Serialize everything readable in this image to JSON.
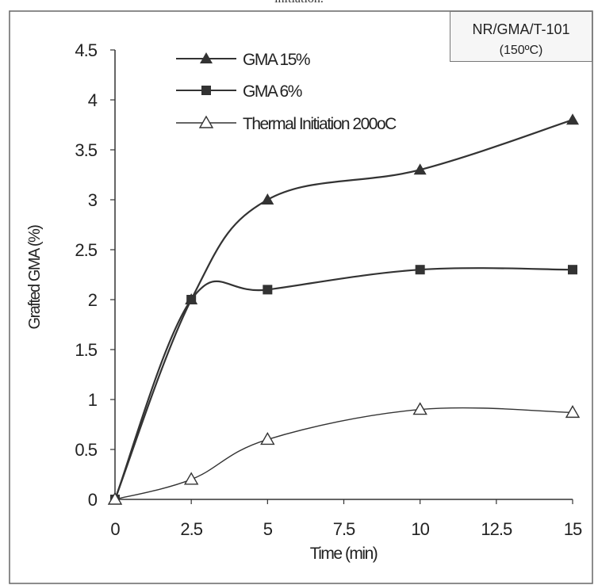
{
  "header_text": "initiation.",
  "note_box": {
    "line1": "NR/GMA/T-101",
    "line2": "(150ºC)"
  },
  "colors": {
    "line": "#333333",
    "frame": "#666666",
    "background": "#ffffff"
  },
  "chart_data": {
    "type": "line",
    "title": "",
    "xlabel": "Time (min)",
    "ylabel": "Grafted GMA (%)",
    "x_ticks": [
      "0",
      "2.5",
      "5",
      "7.5",
      "10",
      "12.5",
      "15"
    ],
    "y_ticks": [
      "0",
      "0.5",
      "1",
      "1.5",
      "2",
      "2.5",
      "3",
      "3.5",
      "4",
      "4.5"
    ],
    "xlim": [
      0,
      15
    ],
    "ylim": [
      0,
      4.5
    ],
    "legend_position": "top-left",
    "grid": false,
    "series": [
      {
        "name": "GMA 15%",
        "marker": "triangle-filled",
        "x": [
          0,
          2.5,
          5,
          10,
          15
        ],
        "y": [
          0,
          2.0,
          3.0,
          3.3,
          3.8
        ]
      },
      {
        "name": "GMA 6%",
        "marker": "square-filled",
        "x": [
          0,
          2.5,
          5,
          10,
          15
        ],
        "y": [
          0,
          2.0,
          2.1,
          2.3,
          2.3
        ]
      },
      {
        "name": "Thermal Initiation 200oC",
        "marker": "triangle-open",
        "x": [
          0,
          2.5,
          5,
          10,
          15
        ],
        "y": [
          0,
          0.2,
          0.6,
          0.9,
          0.87
        ]
      }
    ]
  }
}
